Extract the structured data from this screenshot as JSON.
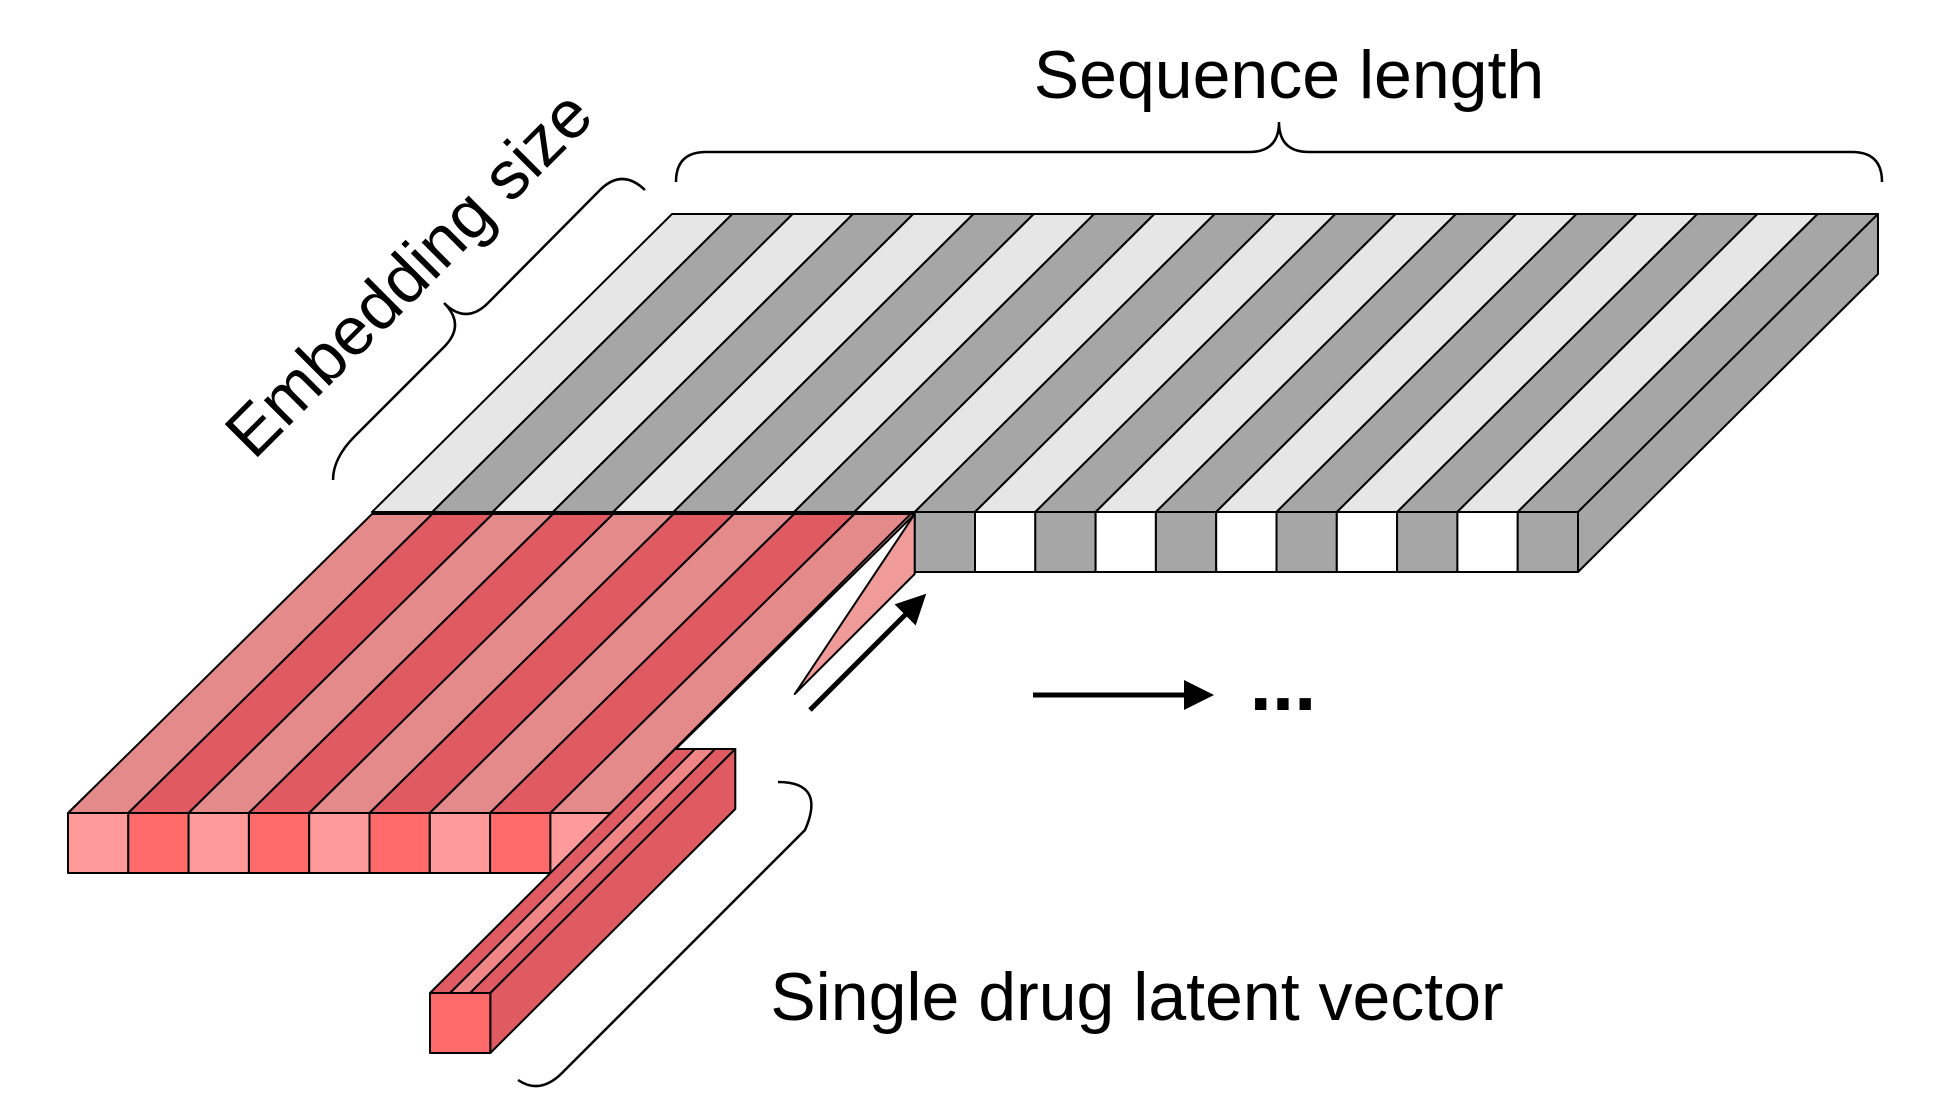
{
  "labels": {
    "sequence_length": "Sequence length",
    "embedding_size": "Embedding size",
    "single_drug_latent_vector": "Single drug latent vector",
    "ellipsis": "..."
  },
  "colors": {
    "stroke": "#000000",
    "gray_light": "#e6e6e6",
    "gray_dark": "#a6a6a6",
    "gray_side": "#a6a6a6",
    "gray_front_white": "#ffffff",
    "red_top_light": "#e58a8a",
    "red_top_dark": "#e05a62",
    "red_front_light": "#ff9a9a",
    "red_front_dark": "#ff6b6b",
    "red_vector_front": "#ff6b6b",
    "red_vector_top_a": "#e05a62",
    "red_vector_top_b": "#f08686",
    "red_step": "#f09a9a"
  },
  "diagram": {
    "gray_block_columns": 20,
    "red_block_columns": 9,
    "arrows": [
      "shift-arrow",
      "continue-arrow"
    ]
  }
}
